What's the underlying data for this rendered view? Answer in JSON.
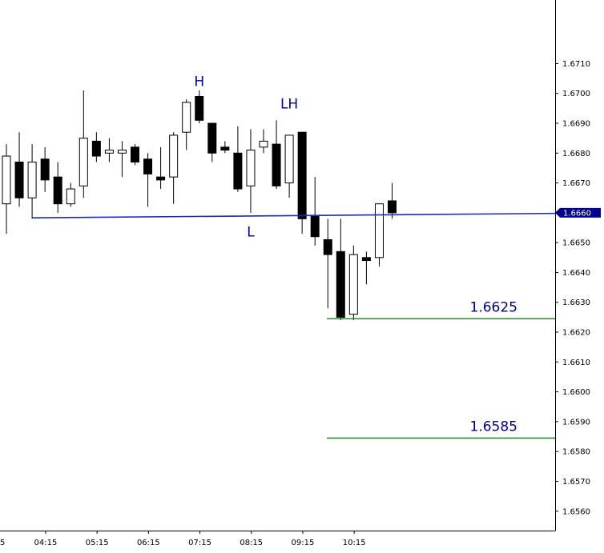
{
  "chart_data": {
    "type": "candlestick",
    "y_axis": {
      "position": "right",
      "ticks": [
        "1.6710",
        "1.6700",
        "1.6690",
        "1.6680",
        "1.6670",
        "1.6660",
        "1.6650",
        "1.6640",
        "1.6630",
        "1.6620",
        "1.6610",
        "1.6600",
        "1.6590",
        "1.6580",
        "1.6570",
        "1.6560"
      ]
    },
    "x_axis": {
      "ticks": [
        "5",
        "04:15",
        "05:15",
        "06:15",
        "07:15",
        "08:15",
        "09:15",
        "10:15"
      ]
    },
    "ylim": [
      1.65535,
      1.67305
    ],
    "grid": false,
    "current_price_label": "1.6660",
    "candles": [
      {
        "o": 1.6663,
        "h": 1.6683,
        "l": 1.6653,
        "c": 1.6679
      },
      {
        "o": 1.6677,
        "h": 1.6687,
        "l": 1.6662,
        "c": 1.6665
      },
      {
        "o": 1.6665,
        "h": 1.6683,
        "l": 1.6658,
        "c": 1.6677
      },
      {
        "o": 1.6678,
        "h": 1.6682,
        "l": 1.6667,
        "c": 1.6671
      },
      {
        "o": 1.6672,
        "h": 1.6677,
        "l": 1.666,
        "c": 1.6663
      },
      {
        "o": 1.6663,
        "h": 1.667,
        "l": 1.6662,
        "c": 1.6668
      },
      {
        "o": 1.6669,
        "h": 1.6701,
        "l": 1.6665,
        "c": 1.6685
      },
      {
        "o": 1.6684,
        "h": 1.6687,
        "l": 1.6677,
        "c": 1.6679
      },
      {
        "o": 1.668,
        "h": 1.6685,
        "l": 1.6677,
        "c": 1.6681
      },
      {
        "o": 1.668,
        "h": 1.6684,
        "l": 1.6672,
        "c": 1.6681
      },
      {
        "o": 1.6682,
        "h": 1.6683,
        "l": 1.6676,
        "c": 1.6677
      },
      {
        "o": 1.6678,
        "h": 1.668,
        "l": 1.6662,
        "c": 1.6673
      },
      {
        "o": 1.6672,
        "h": 1.6682,
        "l": 1.6668,
        "c": 1.6671
      },
      {
        "o": 1.6672,
        "h": 1.6687,
        "l": 1.6663,
        "c": 1.6686
      },
      {
        "o": 1.6687,
        "h": 1.6698,
        "l": 1.6681,
        "c": 1.6697
      },
      {
        "o": 1.6699,
        "h": 1.6701,
        "l": 1.669,
        "c": 1.6691
      },
      {
        "o": 1.669,
        "h": 1.669,
        "l": 1.6677,
        "c": 1.668
      },
      {
        "o": 1.6682,
        "h": 1.6684,
        "l": 1.668,
        "c": 1.6681
      },
      {
        "o": 1.668,
        "h": 1.6689,
        "l": 1.6667,
        "c": 1.6668
      },
      {
        "o": 1.6669,
        "h": 1.6688,
        "l": 1.666,
        "c": 1.6681
      },
      {
        "o": 1.6682,
        "h": 1.6688,
        "l": 1.668,
        "c": 1.6684
      },
      {
        "o": 1.6683,
        "h": 1.6691,
        "l": 1.6668,
        "c": 1.6669
      },
      {
        "o": 1.667,
        "h": 1.6686,
        "l": 1.6665,
        "c": 1.6686
      },
      {
        "o": 1.6687,
        "h": 1.6687,
        "l": 1.6653,
        "c": 1.6658
      },
      {
        "o": 1.6659,
        "h": 1.6672,
        "l": 1.6649,
        "c": 1.6652
      },
      {
        "o": 1.6651,
        "h": 1.6658,
        "l": 1.6628,
        "c": 1.6646
      },
      {
        "o": 1.6647,
        "h": 1.6658,
        "l": 1.6624,
        "c": 1.6625
      },
      {
        "o": 1.6626,
        "h": 1.6649,
        "l": 1.6624,
        "c": 1.6646
      },
      {
        "o": 1.6645,
        "h": 1.6647,
        "l": 1.6636,
        "c": 1.6644
      },
      {
        "o": 1.6645,
        "h": 1.6663,
        "l": 1.6642,
        "c": 1.6663
      },
      {
        "o": 1.6664,
        "h": 1.667,
        "l": 1.6658,
        "c": 1.666
      }
    ],
    "levels": [
      {
        "label": "1.6625",
        "value": 1.66245,
        "color": "#2e8b2e"
      },
      {
        "label": "1.6585",
        "value": 1.65845,
        "color": "#2e8b2e"
      }
    ],
    "trendline": {
      "from_candle": 2,
      "y_start": 1.66583,
      "y_end": 1.66598,
      "color": "#1c2ab5"
    },
    "annotations": [
      {
        "text": "H",
        "candle": 15,
        "y": 1.67025
      },
      {
        "text": "LH",
        "candle": 22,
        "y": 1.6695
      },
      {
        "text": "L",
        "candle": 19,
        "y": 1.6652
      }
    ],
    "colors": {
      "up_fill": "#ffffff",
      "down_fill": "#000000",
      "annotation_text": "#00008b",
      "price_tag": "#00008b"
    }
  }
}
